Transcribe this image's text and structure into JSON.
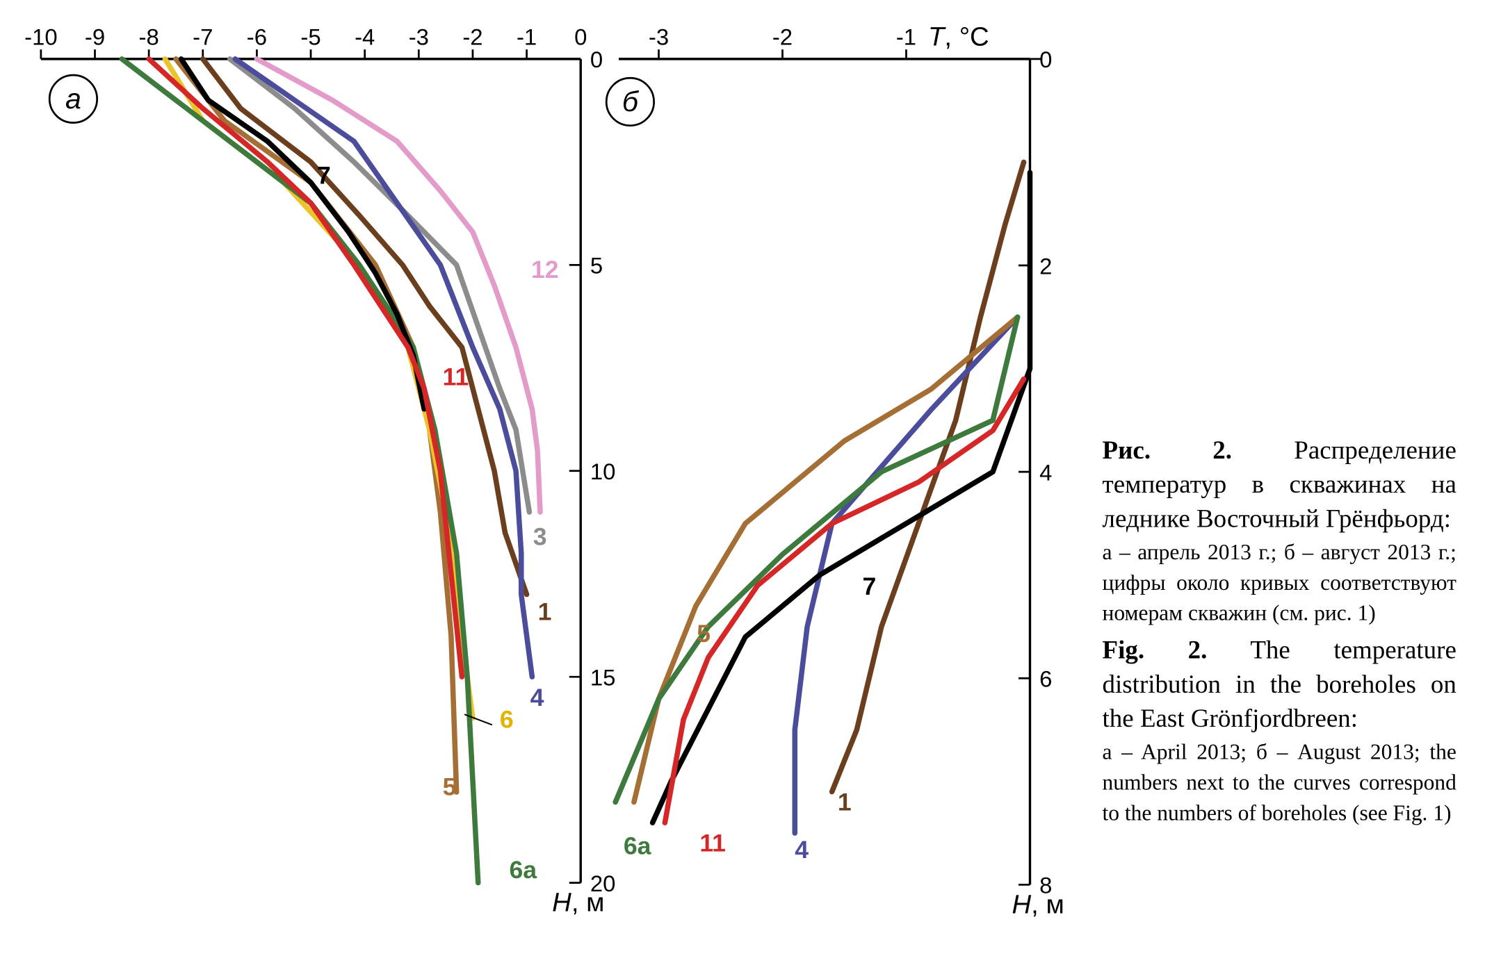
{
  "chart_data": [
    {
      "type": "line",
      "panel_label": "а",
      "x_ticks": [
        -10,
        -9,
        -8,
        -7,
        -6,
        -5,
        -4,
        -3,
        -2,
        -1,
        0
      ],
      "y_ticks": [
        0,
        5,
        10,
        15,
        20
      ],
      "xlim": [
        -10,
        0
      ],
      "ylim": [
        0,
        20
      ],
      "ylabel": "H, м",
      "series": [
        {
          "name": "1",
          "color": "#6b3f1e",
          "points": [
            [
              -7.0,
              0
            ],
            [
              -6.3,
              1.2
            ],
            [
              -5.0,
              2.5
            ],
            [
              -4.1,
              3.8
            ],
            [
              -3.3,
              5.0
            ],
            [
              -2.8,
              6.0
            ],
            [
              -2.2,
              7.0
            ],
            [
              -1.9,
              8.5
            ],
            [
              -1.6,
              10.0
            ],
            [
              -1.4,
              11.5
            ],
            [
              -1.0,
              13.0
            ]
          ]
        },
        {
          "name": "3",
          "color": "#8c8c8c",
          "points": [
            [
              -6.5,
              0
            ],
            [
              -5.3,
              1.2
            ],
            [
              -4.2,
              2.5
            ],
            [
              -3.2,
              3.8
            ],
            [
              -2.3,
              5.0
            ],
            [
              -1.9,
              6.5
            ],
            [
              -1.5,
              8.0
            ],
            [
              -1.2,
              9.0
            ],
            [
              -0.95,
              11.0
            ]
          ]
        },
        {
          "name": "4",
          "color": "#4c4c9c",
          "points": [
            [
              -6.4,
              0
            ],
            [
              -5.3,
              1.0
            ],
            [
              -4.2,
              2.0
            ],
            [
              -3.4,
              3.5
            ],
            [
              -2.6,
              5.0
            ],
            [
              -2.0,
              7.0
            ],
            [
              -1.5,
              8.5
            ],
            [
              -1.2,
              10.0
            ],
            [
              -1.1,
              12.0
            ],
            [
              -1.1,
              13.0
            ],
            [
              -0.9,
              15.0
            ]
          ]
        },
        {
          "name": "5",
          "color": "#a56e34",
          "points": [
            [
              -7.5,
              0
            ],
            [
              -6.6,
              1.5
            ],
            [
              -5.0,
              3.0
            ],
            [
              -3.8,
              5.0
            ],
            [
              -3.1,
              7.0
            ],
            [
              -2.8,
              9.0
            ],
            [
              -2.6,
              11.0
            ],
            [
              -2.4,
              14.0
            ],
            [
              -2.3,
              17.8
            ]
          ]
        },
        {
          "name": "6",
          "color": "#ebc42a",
          "points": [
            [
              -7.7,
              0
            ],
            [
              -7.0,
              1.5
            ],
            [
              -5.5,
              3.0
            ],
            [
              -4.1,
              5.0
            ],
            [
              -3.2,
              7.0
            ],
            [
              -2.8,
              9.0
            ],
            [
              -2.5,
              11.0
            ],
            [
              -2.3,
              13.0
            ],
            [
              -2.1,
              15.0
            ],
            [
              -2.0,
              16.0
            ]
          ]
        },
        {
          "name": "6а",
          "color": "#3e7a3e",
          "points": [
            [
              -8.5,
              0
            ],
            [
              -7.4,
              1.1
            ],
            [
              -6.0,
              2.5
            ],
            [
              -5.0,
              3.5
            ],
            [
              -4.1,
              5.0
            ],
            [
              -3.6,
              6.0
            ],
            [
              -3.1,
              7.0
            ],
            [
              -2.7,
              9.0
            ],
            [
              -2.5,
              10.5
            ],
            [
              -2.3,
              12.0
            ],
            [
              -2.1,
              15.0
            ],
            [
              -1.9,
              20.0
            ]
          ]
        },
        {
          "name": "7",
          "color": "#000000",
          "points": [
            [
              -7.4,
              0
            ],
            [
              -6.9,
              1.0
            ],
            [
              -5.8,
              2.0
            ],
            [
              -5.0,
              3.0
            ],
            [
              -4.3,
              4.2
            ],
            [
              -3.8,
              5.2
            ],
            [
              -3.4,
              6.2
            ],
            [
              -3.1,
              7.2
            ],
            [
              -2.9,
              8.5
            ]
          ]
        },
        {
          "name": "11",
          "color": "#d42828",
          "points": [
            [
              -8.0,
              0
            ],
            [
              -7.0,
              1.2
            ],
            [
              -5.8,
              2.5
            ],
            [
              -5.0,
              3.5
            ],
            [
              -4.2,
              5.0
            ],
            [
              -3.8,
              5.8
            ],
            [
              -3.2,
              7.0
            ],
            [
              -2.9,
              8.0
            ],
            [
              -2.6,
              10.0
            ],
            [
              -2.4,
              12.5
            ],
            [
              -2.2,
              15.0
            ]
          ]
        },
        {
          "name": "12",
          "color": "#e39bc9",
          "points": [
            [
              -6.0,
              0
            ],
            [
              -4.6,
              1.0
            ],
            [
              -3.4,
              2.0
            ],
            [
              -2.6,
              3.2
            ],
            [
              -2.0,
              4.2
            ],
            [
              -1.6,
              5.5
            ],
            [
              -1.2,
              7.0
            ],
            [
              -0.9,
              8.5
            ],
            [
              -0.8,
              9.5
            ],
            [
              -0.75,
              11.0
            ]
          ]
        }
      ]
    },
    {
      "type": "line",
      "panel_label": "б",
      "x_ticks": [
        -3,
        -2,
        -1
      ],
      "y_ticks": [
        0,
        2,
        4,
        6,
        8
      ],
      "xlim": [
        -3.5,
        0
      ],
      "ylim": [
        0,
        8
      ],
      "xlabel": "T, °C",
      "ylabel": "H, м",
      "series": [
        {
          "name": "1",
          "color": "#6b3f1e",
          "points": [
            [
              -0.05,
              1.0
            ],
            [
              -0.2,
              1.6
            ],
            [
              -0.4,
              2.5
            ],
            [
              -0.6,
              3.5
            ],
            [
              -0.9,
              4.5
            ],
            [
              -1.2,
              5.5
            ],
            [
              -1.4,
              6.5
            ],
            [
              -1.6,
              7.1
            ]
          ]
        },
        {
          "name": "4",
          "color": "#4c4c9c",
          "points": [
            [
              -0.1,
              2.5
            ],
            [
              -0.8,
              3.4
            ],
            [
              -1.6,
              4.5
            ],
            [
              -1.8,
              5.5
            ],
            [
              -1.9,
              6.5
            ],
            [
              -1.9,
              7.5
            ]
          ]
        },
        {
          "name": "5",
          "color": "#a56e34",
          "points": [
            [
              -0.1,
              2.5
            ],
            [
              -0.8,
              3.2
            ],
            [
              -1.5,
              3.7
            ],
            [
              -2.3,
              4.5
            ],
            [
              -2.7,
              5.3
            ],
            [
              -3.0,
              6.2
            ],
            [
              -3.2,
              7.2
            ]
          ]
        },
        {
          "name": "6а",
          "color": "#3e7a3e",
          "points": [
            [
              -0.1,
              2.5
            ],
            [
              -0.3,
              3.5
            ],
            [
              -1.2,
              4.0
            ],
            [
              -2.0,
              4.8
            ],
            [
              -2.6,
              5.5
            ],
            [
              -3.0,
              6.2
            ],
            [
              -3.35,
              7.2
            ]
          ]
        },
        {
          "name": "7",
          "color": "#000000",
          "points": [
            [
              0.0,
              1.1
            ],
            [
              0.0,
              3.0
            ],
            [
              -0.3,
              4.0
            ],
            [
              -1.0,
              4.5
            ],
            [
              -1.7,
              5.0
            ],
            [
              -2.3,
              5.6
            ],
            [
              -2.6,
              6.3
            ],
            [
              -2.9,
              7.0
            ],
            [
              -3.05,
              7.4
            ]
          ]
        },
        {
          "name": "11",
          "color": "#d42828",
          "points": [
            [
              -0.05,
              3.1
            ],
            [
              -0.3,
              3.6
            ],
            [
              -0.9,
              4.1
            ],
            [
              -1.6,
              4.5
            ],
            [
              -2.2,
              5.1
            ],
            [
              -2.6,
              5.8
            ],
            [
              -2.8,
              6.4
            ],
            [
              -2.95,
              7.4
            ]
          ]
        }
      ]
    }
  ],
  "caption": {
    "ru_title": "Рис. 2.",
    "ru_text": "Распределение температур в скважинах на леднике Восточный Грёнфьорд:",
    "ru_sub": "а – апрель 2013 г.; б – август 2013 г.; цифры около кривых соответствуют номерам скважин (см. рис. 1)",
    "en_title": "Fig. 2.",
    "en_text": "The temperature distribution in the boreholes on the East Grönfjordbreen:",
    "en_sub": "a – April 2013; б – August 2013; the numbers next to the curves correspond to the numbers of boreholes (see Fig. 1)"
  },
  "colors": {
    "axis": "#000000"
  }
}
